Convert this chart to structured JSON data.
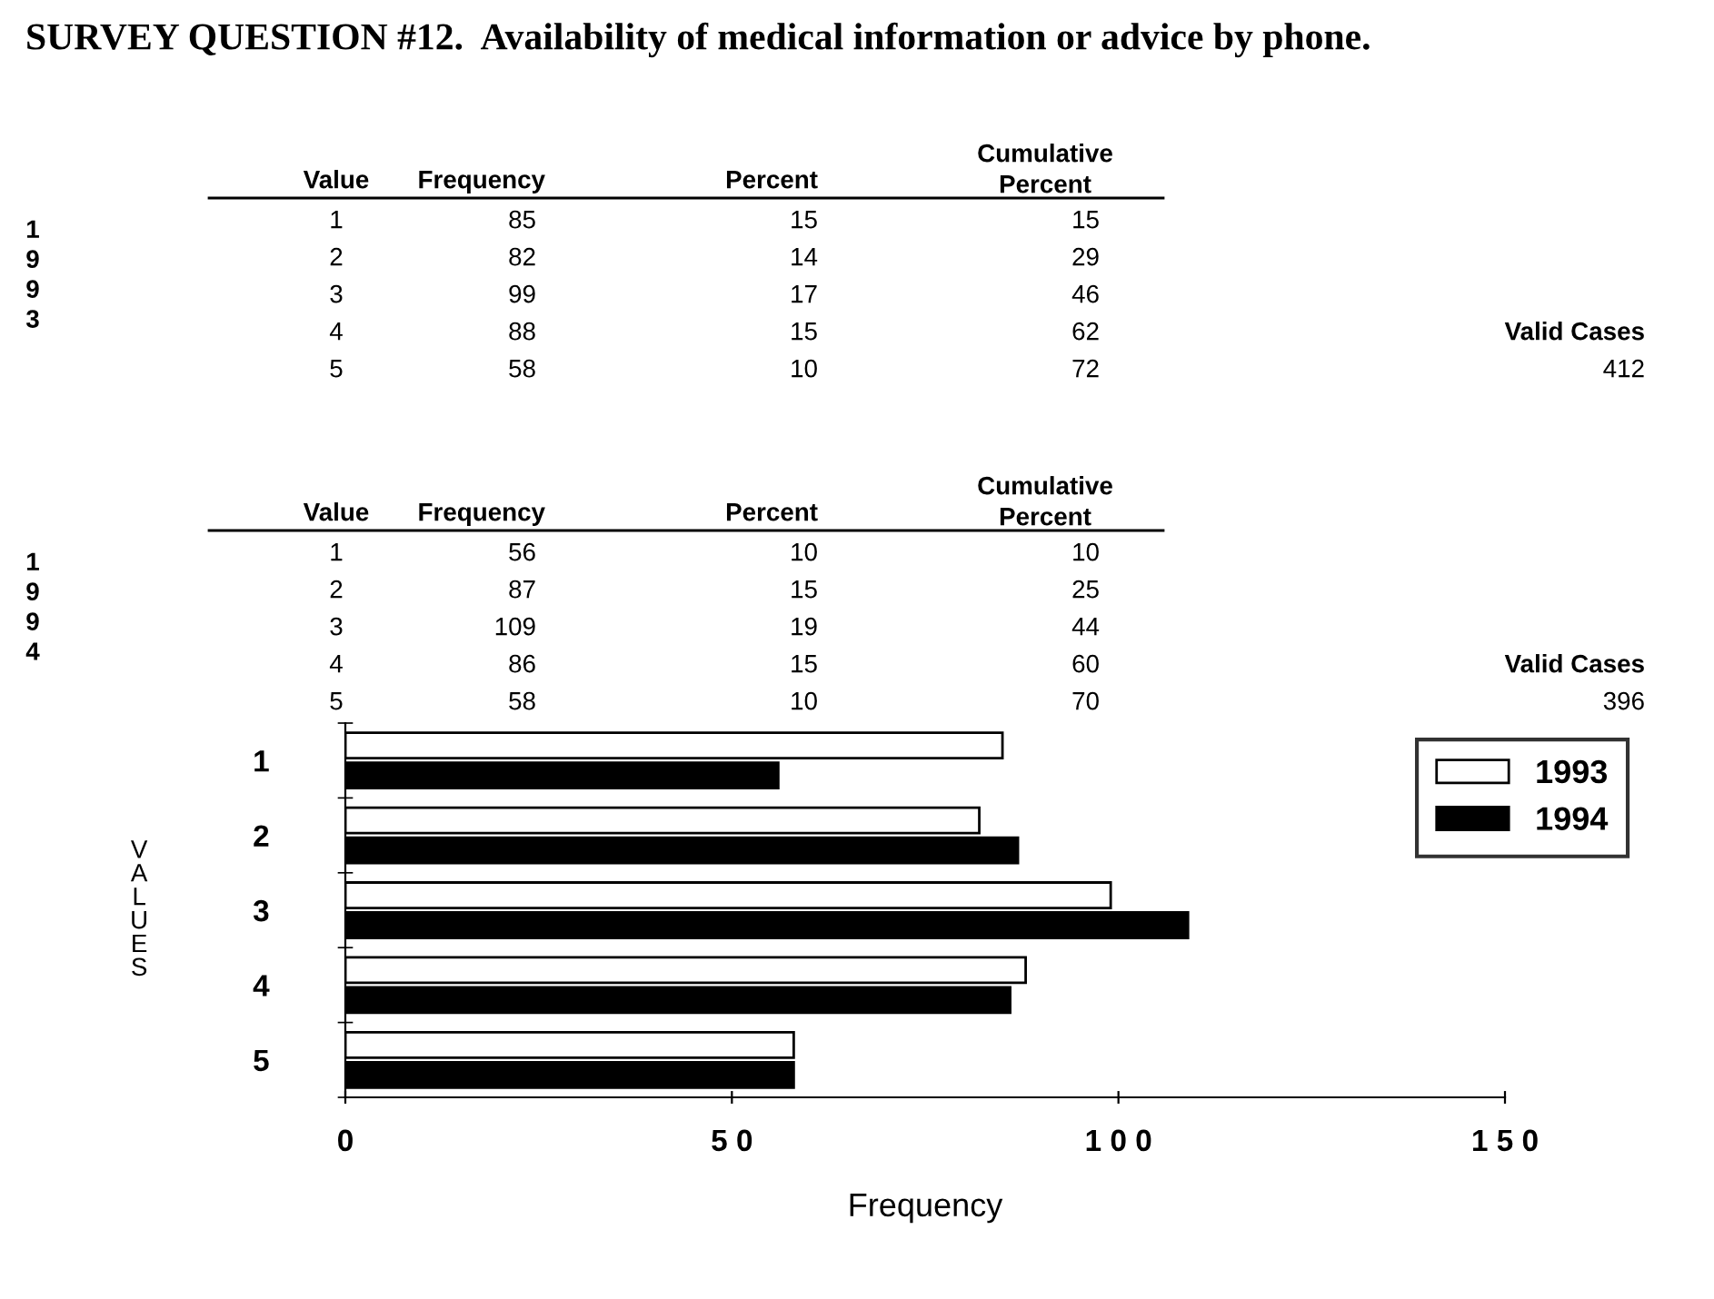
{
  "chart_data": {
    "type": "bar",
    "orientation": "horizontal",
    "title": "SURVEY QUESTION #12.  Availability of medical information or advice by phone.",
    "categories": [
      "1",
      "2",
      "3",
      "4",
      "5"
    ],
    "series": [
      {
        "name": "1993",
        "color": "#ffffff",
        "values": [
          85,
          82,
          99,
          88,
          58
        ]
      },
      {
        "name": "1994",
        "color": "#000000",
        "values": [
          56,
          87,
          109,
          86,
          58
        ]
      }
    ],
    "xlabel": "Frequency",
    "ylabel": "VALUES",
    "xlim": [
      0,
      150
    ],
    "xticks": [
      0,
      50,
      100,
      150
    ],
    "legend": "top right",
    "grid": false,
    "annotations": [
      "Value",
      "Frequency",
      "Percent",
      "Cumulative\nPercent",
      "1993",
      "1",
      "85",
      "15",
      "15",
      "2",
      "82",
      "14",
      "29",
      "3",
      "99",
      "17",
      "46",
      "4",
      "88",
      "15",
      "62",
      "5",
      "58",
      "10",
      "72",
      "Valid Cases",
      "412",
      "Value",
      "Frequency",
      "Percent",
      "Cumulative\nPercent",
      "1994",
      "1",
      "56",
      "10",
      "10",
      "2",
      "87",
      "15",
      "25",
      "3",
      "109",
      "19",
      "44",
      "4",
      "86",
      "15",
      "60",
      "5",
      "58",
      "10",
      "70",
      "Valid Cases",
      "396"
    ]
  }
}
